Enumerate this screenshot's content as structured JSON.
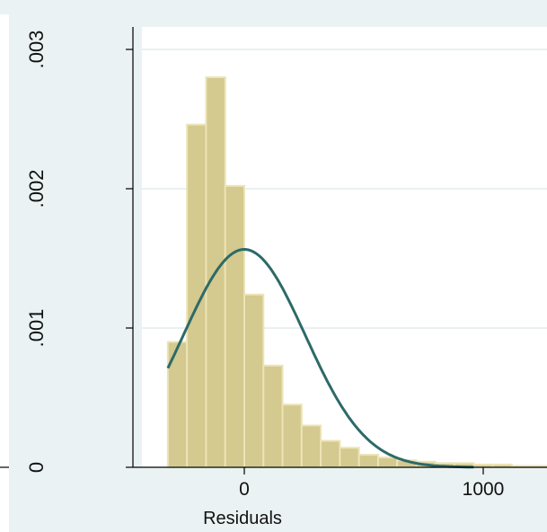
{
  "chart_data": {
    "type": "bar",
    "subtype": "histogram-with-normal-density",
    "title": "",
    "xlabel": "Residuals",
    "ylabel": "",
    "xlim": [
      -420,
      1280
    ],
    "ylim": [
      0,
      0.003
    ],
    "x_ticks": [
      {
        "value": 0,
        "label": "0"
      },
      {
        "value": 1000,
        "label": "1000"
      }
    ],
    "y_ticks": [
      {
        "value": 0,
        "label": "0"
      },
      {
        "value": 0.001,
        "label": ".001"
      },
      {
        "value": 0.002,
        "label": ".002"
      },
      {
        "value": 0.003,
        "label": ".003"
      }
    ],
    "grid": {
      "horizontal": true,
      "vertical": false
    },
    "bins": [
      {
        "x0": -320,
        "x1": -240,
        "density": 0.0009
      },
      {
        "x0": -240,
        "x1": -160,
        "density": 0.00246
      },
      {
        "x0": -160,
        "x1": -80,
        "density": 0.0028
      },
      {
        "x0": -80,
        "x1": 0,
        "density": 0.00202
      },
      {
        "x0": 0,
        "x1": 80,
        "density": 0.00124
      },
      {
        "x0": 80,
        "x1": 160,
        "density": 0.00073
      },
      {
        "x0": 160,
        "x1": 240,
        "density": 0.00045
      },
      {
        "x0": 240,
        "x1": 320,
        "density": 0.0003
      },
      {
        "x0": 320,
        "x1": 400,
        "density": 0.00019
      },
      {
        "x0": 400,
        "x1": 480,
        "density": 0.00014
      },
      {
        "x0": 480,
        "x1": 560,
        "density": 9e-05
      },
      {
        "x0": 560,
        "x1": 640,
        "density": 7e-05
      },
      {
        "x0": 640,
        "x1": 720,
        "density": 5e-05
      },
      {
        "x0": 720,
        "x1": 800,
        "density": 4e-05
      },
      {
        "x0": 800,
        "x1": 880,
        "density": 3e-05
      },
      {
        "x0": 880,
        "x1": 960,
        "density": 3e-05
      },
      {
        "x0": 960,
        "x1": 1040,
        "density": 2e-05
      },
      {
        "x0": 1040,
        "x1": 1120,
        "density": 2e-05
      },
      {
        "x0": 1120,
        "x1": 1200,
        "density": 1e-05
      },
      {
        "x0": 1200,
        "x1": 1280,
        "density": 1e-05
      }
    ],
    "normal_density": {
      "mean": 0,
      "sd": 255,
      "x_from": -320,
      "x_to": 960
    },
    "colors": {
      "background": "#eaf2f3",
      "plot_area": "#ffffff",
      "grid": "#e4ecee",
      "bar_fill": "#d4c98e",
      "bar_edge": "#ece4b6",
      "density_line": "#2d6a68",
      "axis": "#000000"
    }
  }
}
